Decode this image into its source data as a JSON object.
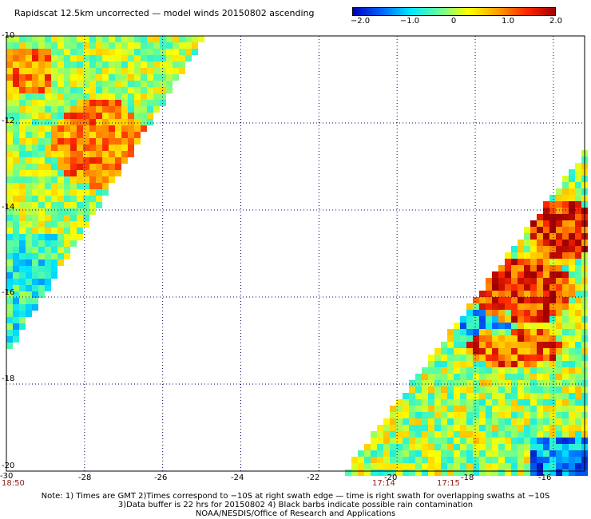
{
  "title": "Rapidscat 12.5km uncorrected — model winds 20150802 ascending",
  "colorbar": {
    "labels": [
      "−2.0",
      "−1.0",
      "0",
      "1.0",
      "2.0"
    ],
    "values": [
      -2.0,
      -1.0,
      0,
      1.0,
      2.0
    ],
    "colors": [
      "#0000b4",
      "#0064ff",
      "#00e6ff",
      "#64ff96",
      "#ffff00",
      "#ffa000",
      "#ff2800",
      "#a00000"
    ]
  },
  "map": {
    "lat_labels": [
      "-10",
      "-12",
      "-14",
      "-16",
      "-18",
      "-20"
    ],
    "lon_labels": [
      "-30",
      "-28",
      "-26",
      "-24",
      "-22",
      "-20",
      "-18",
      "-16"
    ],
    "lat_range": [
      -20,
      -10
    ],
    "lon_range": [
      -30,
      -15.2
    ]
  },
  "times": [
    "18:50",
    "17:14",
    "17:15"
  ],
  "notes": [
    "Note: 1) Times are GMT 2)Times correspond to −10S at right swath edge — time is right swath for overlapping swaths at −10S",
    "3)Data buffer is 22 hrs for 20150802 4) Black barbs indicate possible rain contamination",
    "NOAA/NESDIS/Office of Research and Applications"
  ]
}
